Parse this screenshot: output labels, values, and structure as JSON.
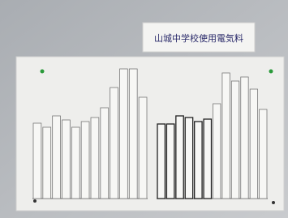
{
  "header": {
    "title": "山城中学校使用電気料"
  },
  "charts": [
    {
      "values": [
        93,
        88,
        102,
        97,
        88,
        95,
        100,
        112,
        137,
        160,
        160,
        125
      ]
    },
    {
      "values": [
        92,
        92,
        102,
        100,
        95,
        98,
        117,
        155,
        145,
        150,
        135,
        110
      ]
    }
  ]
}
